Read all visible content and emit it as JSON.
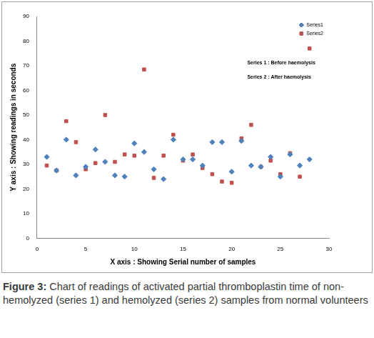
{
  "chart_data": {
    "type": "scatter",
    "x_label": "X axis : Showing Serial number of samples",
    "y_label": "Y axis : Showing readings in seconds",
    "annotations": [
      "Series 1 : Before haemolysis",
      "Series 2 : After haemolysis"
    ],
    "x": [
      1,
      2,
      3,
      4,
      5,
      6,
      7,
      8,
      9,
      10,
      11,
      12,
      13,
      14,
      15,
      16,
      17,
      18,
      19,
      20,
      21,
      22,
      23,
      24,
      25,
      26,
      27,
      28
    ],
    "series": [
      {
        "name": "Series1",
        "color": "#4f81bd",
        "marker": "diamond",
        "values": [
          33,
          27.5,
          40,
          25.5,
          29,
          36,
          31,
          25.5,
          25,
          38.5,
          35,
          28,
          24,
          40,
          32,
          32,
          29.5,
          39,
          39,
          27,
          39.5,
          29.5,
          29,
          33,
          25,
          34,
          29.5,
          32
        ]
      },
      {
        "name": "Series2",
        "color": "#c0504d",
        "marker": "square",
        "values": [
          29.5,
          27.5,
          47.5,
          39,
          28,
          30.5,
          50,
          31,
          34,
          33.5,
          68.5,
          24.5,
          33.5,
          42,
          31.5,
          34,
          28.5,
          26,
          23,
          22.5,
          40.5,
          46,
          29,
          31.5,
          26,
          34.5,
          25,
          77
        ]
      }
    ],
    "xlim": [
      0,
      30
    ],
    "xticks": [
      0,
      5,
      10,
      15,
      20,
      25,
      30
    ],
    "ylim": [
      0,
      90
    ],
    "yticks": [
      0,
      10,
      20,
      30,
      40,
      50,
      60,
      70,
      80,
      90
    ],
    "grid": false,
    "legend": "top-right"
  },
  "caption_label": "Figure 3:",
  "caption_text": "Chart of readings of activated partial thromboplastin time of non-hemolyzed (series 1) and hemolyzed (series 2) samples from normal volunteers"
}
